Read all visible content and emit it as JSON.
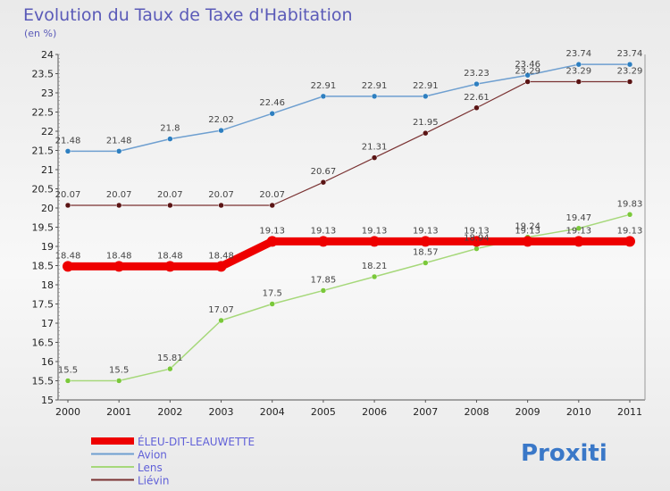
{
  "chart_data": {
    "type": "line",
    "title": "Evolution du Taux de Taxe d'Habitation",
    "subtitle": "(en %)",
    "x": [
      "2000",
      "2001",
      "2002",
      "2003",
      "2004",
      "2005",
      "2006",
      "2007",
      "2008",
      "2009",
      "2010",
      "2011"
    ],
    "ylim": [
      15,
      24
    ],
    "yticks": [
      "15",
      "15.5",
      "16",
      "16.5",
      "17",
      "17.5",
      "18",
      "18.5",
      "19",
      "19.5",
      "20",
      "20.5",
      "21",
      "21.5",
      "22",
      "22.5",
      "23",
      "23.5",
      "24"
    ],
    "grid": false,
    "legend_position": "bottom-left",
    "series": [
      {
        "name": "ÉLEU-DIT-LEAUWETTE",
        "color": "#ee0000",
        "label_color": "#6060d8",
        "width": 9,
        "marker": "#ee0000",
        "marker_r": 6,
        "values": [
          18.48,
          18.48,
          18.48,
          18.48,
          19.13,
          19.13,
          19.13,
          19.13,
          19.13,
          19.13,
          19.13,
          19.13
        ]
      },
      {
        "name": "Avion",
        "color": "#6e9fd0",
        "label_color": "#6060d8",
        "width": 1.5,
        "marker": "#2e7fc0",
        "marker_r": 3,
        "values": [
          21.48,
          21.48,
          21.8,
          22.02,
          22.46,
          22.91,
          22.91,
          22.91,
          23.23,
          23.46,
          23.74,
          23.74
        ]
      },
      {
        "name": "Lens",
        "color": "#a6d87a",
        "label_color": "#6060d8",
        "width": 1.5,
        "marker": "#7ac83a",
        "marker_r": 3,
        "values": [
          15.5,
          15.5,
          15.81,
          17.07,
          17.5,
          17.85,
          18.21,
          18.57,
          18.94,
          19.24,
          19.47,
          19.83
        ]
      },
      {
        "name": "Liévin",
        "color": "#7a3232",
        "label_color": "#6060d8",
        "width": 1.2,
        "marker": "#5a1414",
        "marker_r": 3,
        "values": [
          20.07,
          20.07,
          20.07,
          20.07,
          20.07,
          20.67,
          21.31,
          21.95,
          22.61,
          23.29,
          23.29,
          23.29
        ]
      }
    ],
    "data_labels": [
      [
        "18.48",
        "18.48",
        "18.48",
        "18.48",
        "19.13",
        "19.13",
        "19.13",
        "19.13",
        "19.13",
        "19.13",
        "19.13",
        "19.13"
      ],
      [
        "21.48",
        "21.48",
        "21.8",
        "22.02",
        "22.46",
        "22.91",
        "22.91",
        "22.91",
        "23.23",
        "23.46",
        "23.74",
        "23.74"
      ],
      [
        "15.5",
        "15.5",
        "15.81",
        "17.07",
        "17.5",
        "17.85",
        "18.21",
        "18.57",
        "18.94",
        "19.24",
        "19.47",
        "19.83"
      ],
      [
        "20.07",
        "20.07",
        "20.07",
        "20.07",
        "20.07",
        "20.67",
        "21.31",
        "21.95",
        "22.61",
        "23.29",
        "23.29",
        "23.29"
      ]
    ]
  },
  "logo": {
    "text": "Proxiti"
  }
}
